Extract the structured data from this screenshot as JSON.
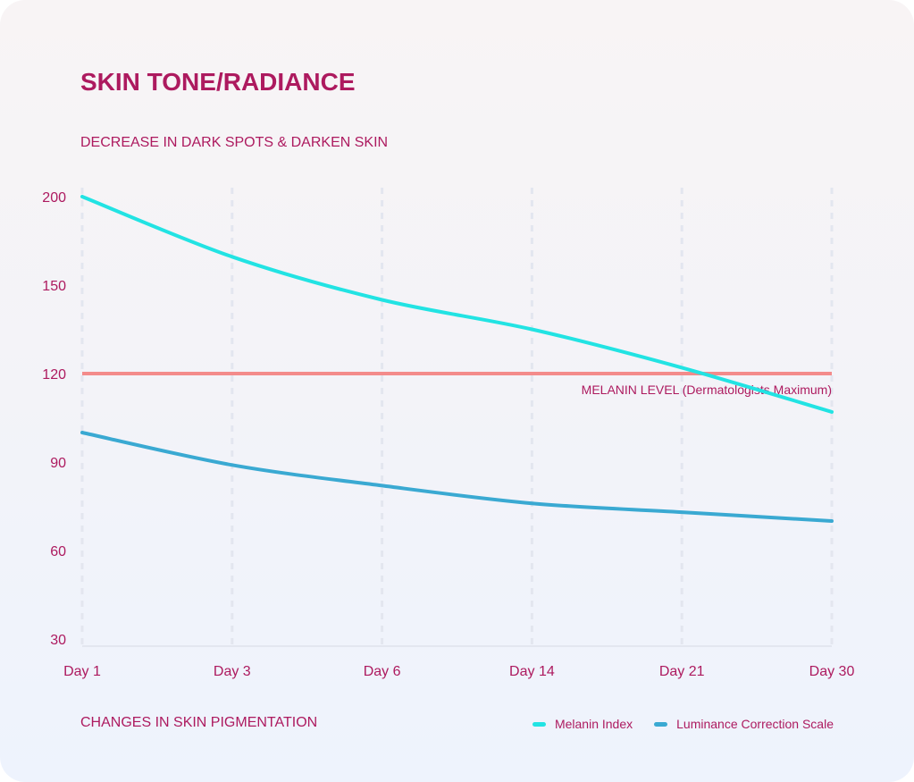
{
  "title": "SKIN TONE/RADIANCE",
  "subtitle": "DECREASE IN DARK SPOTS & DARKEN SKIN",
  "footer": "CHANGES IN SKIN PIGMENTATION",
  "chart_data": {
    "type": "line",
    "title": "SKIN TONE/RADIANCE",
    "xlabel": "CHANGES IN SKIN PIGMENTATION",
    "ylabel": "",
    "categories": [
      "Day 1",
      "Day 3",
      "Day 6",
      "Day 14",
      "Day 21",
      "Day 30"
    ],
    "y_ticks": [
      200,
      150,
      120,
      90,
      60,
      30
    ],
    "series": [
      {
        "name": "Melanin Index",
        "color": "#22e3e3",
        "values": [
          200,
          166,
          145,
          135,
          122,
          107
        ]
      },
      {
        "name": "Luminance Correction Scale",
        "color": "#3aa9d2",
        "values": [
          100,
          89,
          82,
          76,
          73,
          70
        ]
      }
    ],
    "reference_line": {
      "value": 120,
      "label": "MELANIN LEVEL (Dermatologists Maximum)",
      "color": "#f38b8b"
    },
    "grid": "vertical dashed",
    "legend_position": "bottom-right"
  }
}
